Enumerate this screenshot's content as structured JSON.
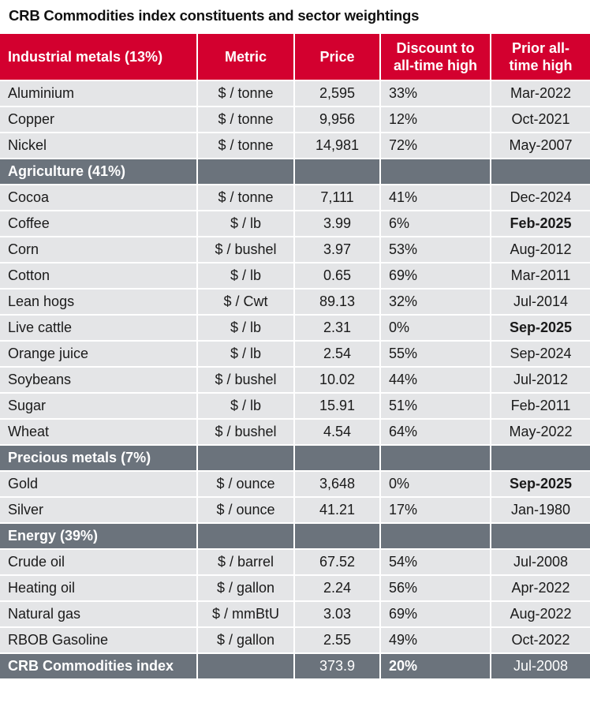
{
  "title": "CRB Commodities index constituents and sector weightings",
  "header": {
    "col1": "Industrial metals (13%)",
    "col2": "Metric",
    "col3": "Price",
    "col4_line1": "Discount to",
    "col4_line2": "all-time high",
    "col5_line1": "Prior all-",
    "col5_line2": "time high"
  },
  "colors": {
    "header_red": "#d3002f",
    "section_gray": "#6b737c",
    "row_light": "#e4e5e7"
  },
  "rows": [
    {
      "type": "item",
      "name": "Aluminium",
      "metric": "$ / tonne",
      "price": "2,595",
      "discount": "33%",
      "prior_high": "Mar-2022",
      "prior_high_bold": false
    },
    {
      "type": "item",
      "name": "Copper",
      "metric": "$ / tonne",
      "price": "9,956",
      "discount": "12%",
      "prior_high": "Oct-2021",
      "prior_high_bold": false
    },
    {
      "type": "item",
      "name": "Nickel",
      "metric": "$ / tonne",
      "price": "14,981",
      "discount": "72%",
      "prior_high": "May-2007",
      "prior_high_bold": false
    },
    {
      "type": "section",
      "name": "Agriculture (41%)"
    },
    {
      "type": "item",
      "name": "Cocoa",
      "metric": "$ / tonne",
      "price": "7,111",
      "discount": "41%",
      "prior_high": "Dec-2024",
      "prior_high_bold": false
    },
    {
      "type": "item",
      "name": "Coffee",
      "metric": "$ / lb",
      "price": "3.99",
      "discount": "6%",
      "prior_high": "Feb-2025",
      "prior_high_bold": true
    },
    {
      "type": "item",
      "name": "Corn",
      "metric": "$ / bushel",
      "price": "3.97",
      "discount": "53%",
      "prior_high": "Aug-2012",
      "prior_high_bold": false
    },
    {
      "type": "item",
      "name": "Cotton",
      "metric": "$ / lb",
      "price": "0.65",
      "discount": "69%",
      "prior_high": "Mar-2011",
      "prior_high_bold": false
    },
    {
      "type": "item",
      "name": "Lean hogs",
      "metric": "$ / Cwt",
      "price": "89.13",
      "discount": "32%",
      "prior_high": "Jul-2014",
      "prior_high_bold": false
    },
    {
      "type": "item",
      "name": "Live cattle",
      "metric": "$ / lb",
      "price": "2.31",
      "discount": "0%",
      "prior_high": "Sep-2025",
      "prior_high_bold": true
    },
    {
      "type": "item",
      "name": "Orange juice",
      "metric": "$ / lb",
      "price": "2.54",
      "discount": "55%",
      "prior_high": "Sep-2024",
      "prior_high_bold": false
    },
    {
      "type": "item",
      "name": "Soybeans",
      "metric": "$ / bushel",
      "price": "10.02",
      "discount": "44%",
      "prior_high": "Jul-2012",
      "prior_high_bold": false
    },
    {
      "type": "item",
      "name": "Sugar",
      "metric": "$ / lb",
      "price": "15.91",
      "discount": "51%",
      "prior_high": "Feb-2011",
      "prior_high_bold": false
    },
    {
      "type": "item",
      "name": "Wheat",
      "metric": "$ / bushel",
      "price": "4.54",
      "discount": "64%",
      "prior_high": "May-2022",
      "prior_high_bold": false
    },
    {
      "type": "section",
      "name": "Precious metals (7%)"
    },
    {
      "type": "item",
      "name": "Gold",
      "metric": "$ / ounce",
      "price": "3,648",
      "discount": "0%",
      "prior_high": "Sep-2025",
      "prior_high_bold": true
    },
    {
      "type": "item",
      "name": "Silver",
      "metric": "$ / ounce",
      "price": "41.21",
      "discount": "17%",
      "prior_high": "Jan-1980",
      "prior_high_bold": false
    },
    {
      "type": "section",
      "name": "Energy (39%)"
    },
    {
      "type": "item",
      "name": "Crude oil",
      "metric": "$ / barrel",
      "price": "67.52",
      "discount": "54%",
      "prior_high": "Jul-2008",
      "prior_high_bold": false
    },
    {
      "type": "item",
      "name": "Heating oil",
      "metric": "$ / gallon",
      "price": "2.24",
      "discount": "56%",
      "prior_high": "Apr-2022",
      "prior_high_bold": false
    },
    {
      "type": "item",
      "name": "Natural gas",
      "metric": "$ / mmBtU",
      "price": "3.03",
      "discount": "69%",
      "prior_high": "Aug-2022",
      "prior_high_bold": false
    },
    {
      "type": "item",
      "name": "RBOB Gasoline",
      "metric": "$ / gallon",
      "price": "2.55",
      "discount": "49%",
      "prior_high": "Oct-2022",
      "prior_high_bold": false
    },
    {
      "type": "total",
      "name": "CRB Commodities index",
      "metric": "",
      "price": "373.9",
      "discount": "20%",
      "prior_high": "Jul-2008",
      "prior_high_bold": false
    }
  ]
}
